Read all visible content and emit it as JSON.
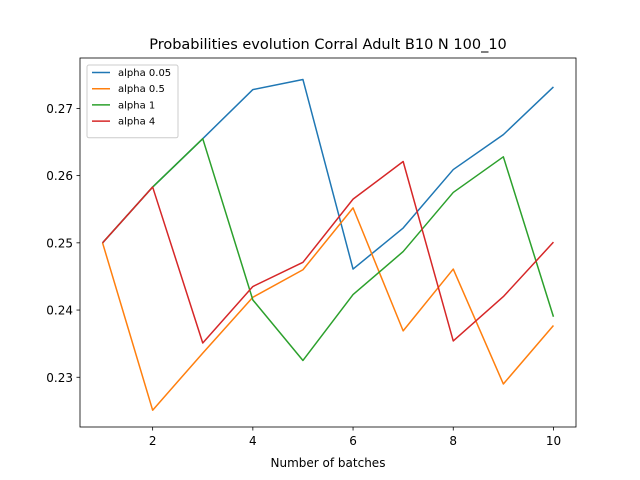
{
  "chart_data": {
    "type": "line",
    "title": "Probabilities evolution Corral Adult B10 N 100_10",
    "xlabel": "Number of batches",
    "ylabel": "",
    "x": [
      1,
      2,
      3,
      4,
      5,
      6,
      7,
      8,
      9,
      10
    ],
    "xlim": [
      0.55,
      10.45
    ],
    "ylim": [
      0.2226,
      0.2775
    ],
    "xticks": [
      2,
      4,
      6,
      8,
      10
    ],
    "yticks": [
      0.23,
      0.24,
      0.25,
      0.26,
      0.27
    ],
    "ytick_labels": [
      "0.23",
      "0.24",
      "0.25",
      "0.26",
      "0.27"
    ],
    "grid": false,
    "legend_position": "upper-left",
    "series": [
      {
        "name": "alpha 0.05",
        "color": "#1f77b4",
        "values": [
          0.25,
          0.2583,
          0.2655,
          0.2728,
          0.2743,
          0.2461,
          0.2522,
          0.2609,
          0.2661,
          0.2732
        ]
      },
      {
        "name": "alpha 0.5",
        "color": "#ff7f0e",
        "values": [
          0.25,
          0.2251,
          0.2336,
          0.2419,
          0.246,
          0.2552,
          0.2369,
          0.2461,
          0.229,
          0.2377
        ]
      },
      {
        "name": "alpha 1",
        "color": "#2ca02c",
        "values": [
          0.25,
          0.2583,
          0.2655,
          0.2415,
          0.2325,
          0.2423,
          0.2487,
          0.2575,
          0.2628,
          0.239
        ]
      },
      {
        "name": "alpha 4",
        "color": "#d62728",
        "values": [
          0.25,
          0.2583,
          0.2351,
          0.2435,
          0.2471,
          0.2565,
          0.2621,
          0.2354,
          0.242,
          0.2501
        ]
      }
    ]
  }
}
